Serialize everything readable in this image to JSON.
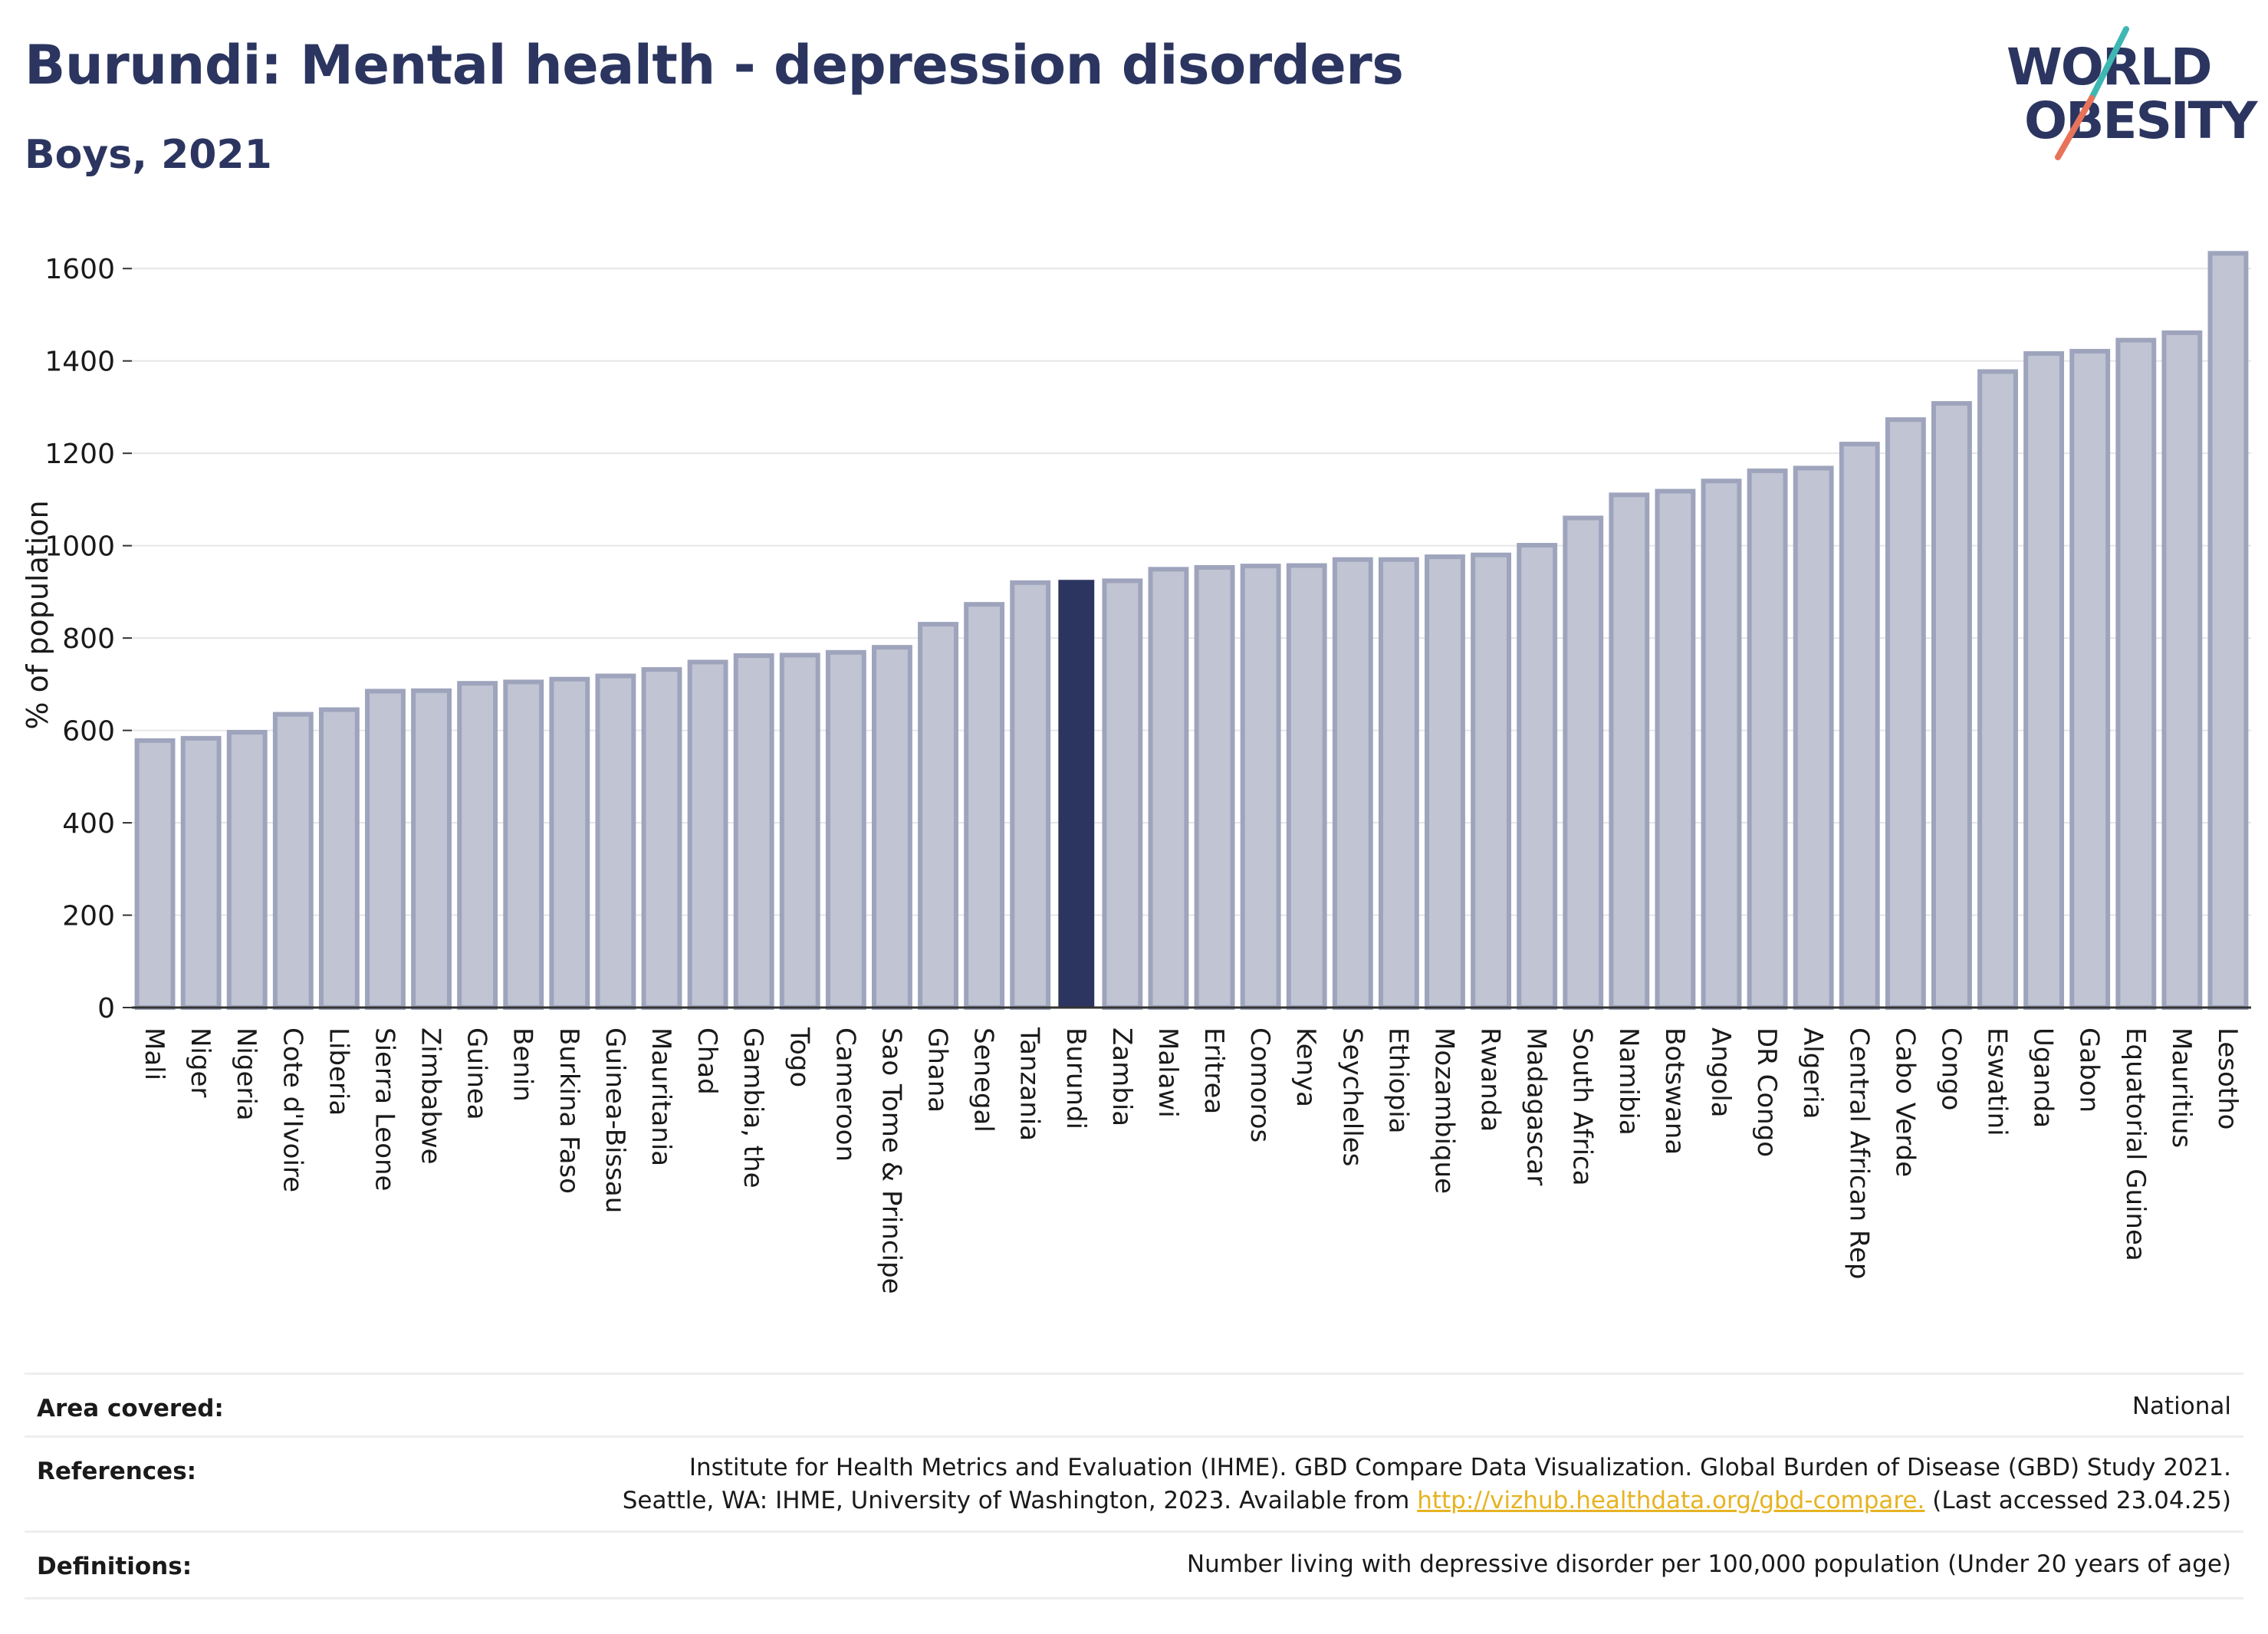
{
  "header": {
    "title": "Burundi: Mental health - depression disorders",
    "subtitle": "Boys, 2021"
  },
  "logo": {
    "line1": "WORLD",
    "line2": "OBESITY",
    "colors": {
      "text": "#2b3560",
      "slash_top": "#3fb7b3",
      "slash_bottom": "#e8735a"
    }
  },
  "chart_data": {
    "type": "bar",
    "ylabel": "% of population",
    "ylim": [
      0,
      1700
    ],
    "yticks": [
      0,
      200,
      400,
      600,
      800,
      1000,
      1200,
      1400,
      1600
    ],
    "grid": true,
    "highlight": "Burundi",
    "colors": {
      "bar": "#c0c4d3",
      "bar_border": "#9ea4bc",
      "highlight": "#2b3560"
    },
    "categories": [
      "Mali",
      "Niger",
      "Nigeria",
      "Cote d'Ivoire",
      "Liberia",
      "Sierra Leone",
      "Zimbabwe",
      "Guinea",
      "Benin",
      "Burkina Faso",
      "Guinea-Bissau",
      "Mauritania",
      "Chad",
      "Gambia, the",
      "Togo",
      "Cameroon",
      "Sao Tome & Principe",
      "Ghana",
      "Senegal",
      "Tanzania",
      "Burundi",
      "Zambia",
      "Malawi",
      "Eritrea",
      "Comoros",
      "Kenya",
      "Seychelles",
      "Ethiopia",
      "Mozambique",
      "Rwanda",
      "Madagascar",
      "South Africa",
      "Namibia",
      "Botswana",
      "Angola",
      "DR Congo",
      "Algeria",
      "Central African Rep",
      "Cabo Verde",
      "Congo",
      "Eswatini",
      "Uganda",
      "Gabon",
      "Equatorial Guinea",
      "Mauritius",
      "Lesotho"
    ],
    "values": [
      578,
      583,
      596,
      635,
      645,
      685,
      686,
      702,
      705,
      711,
      718,
      732,
      748,
      762,
      763,
      769,
      780,
      830,
      873,
      920,
      926,
      924,
      949,
      953,
      956,
      957,
      970,
      970,
      976,
      980,
      1001,
      1060,
      1110,
      1118,
      1140,
      1162,
      1168,
      1220,
      1273,
      1308,
      1377,
      1416,
      1421,
      1445,
      1461,
      1633
    ]
  },
  "info": {
    "area_label": "Area covered:",
    "area_value": "National",
    "references_label": "References:",
    "references_line1": "Institute for Health Metrics and Evaluation (IHME). GBD Compare Data Visualization. Global Burden of Disease (GBD) Study 2021.",
    "references_line2_pre": "Seattle, WA: IHME, University of Washington, 2023. Available from ",
    "references_link": "http://vizhub.healthdata.org/gbd-compare.",
    "references_line2_post": " (Last accessed 23.04.25)",
    "definitions_label": "Definitions:",
    "definitions_value": "Number living with depressive disorder per 100,000 population (Under 20 years of age)"
  }
}
